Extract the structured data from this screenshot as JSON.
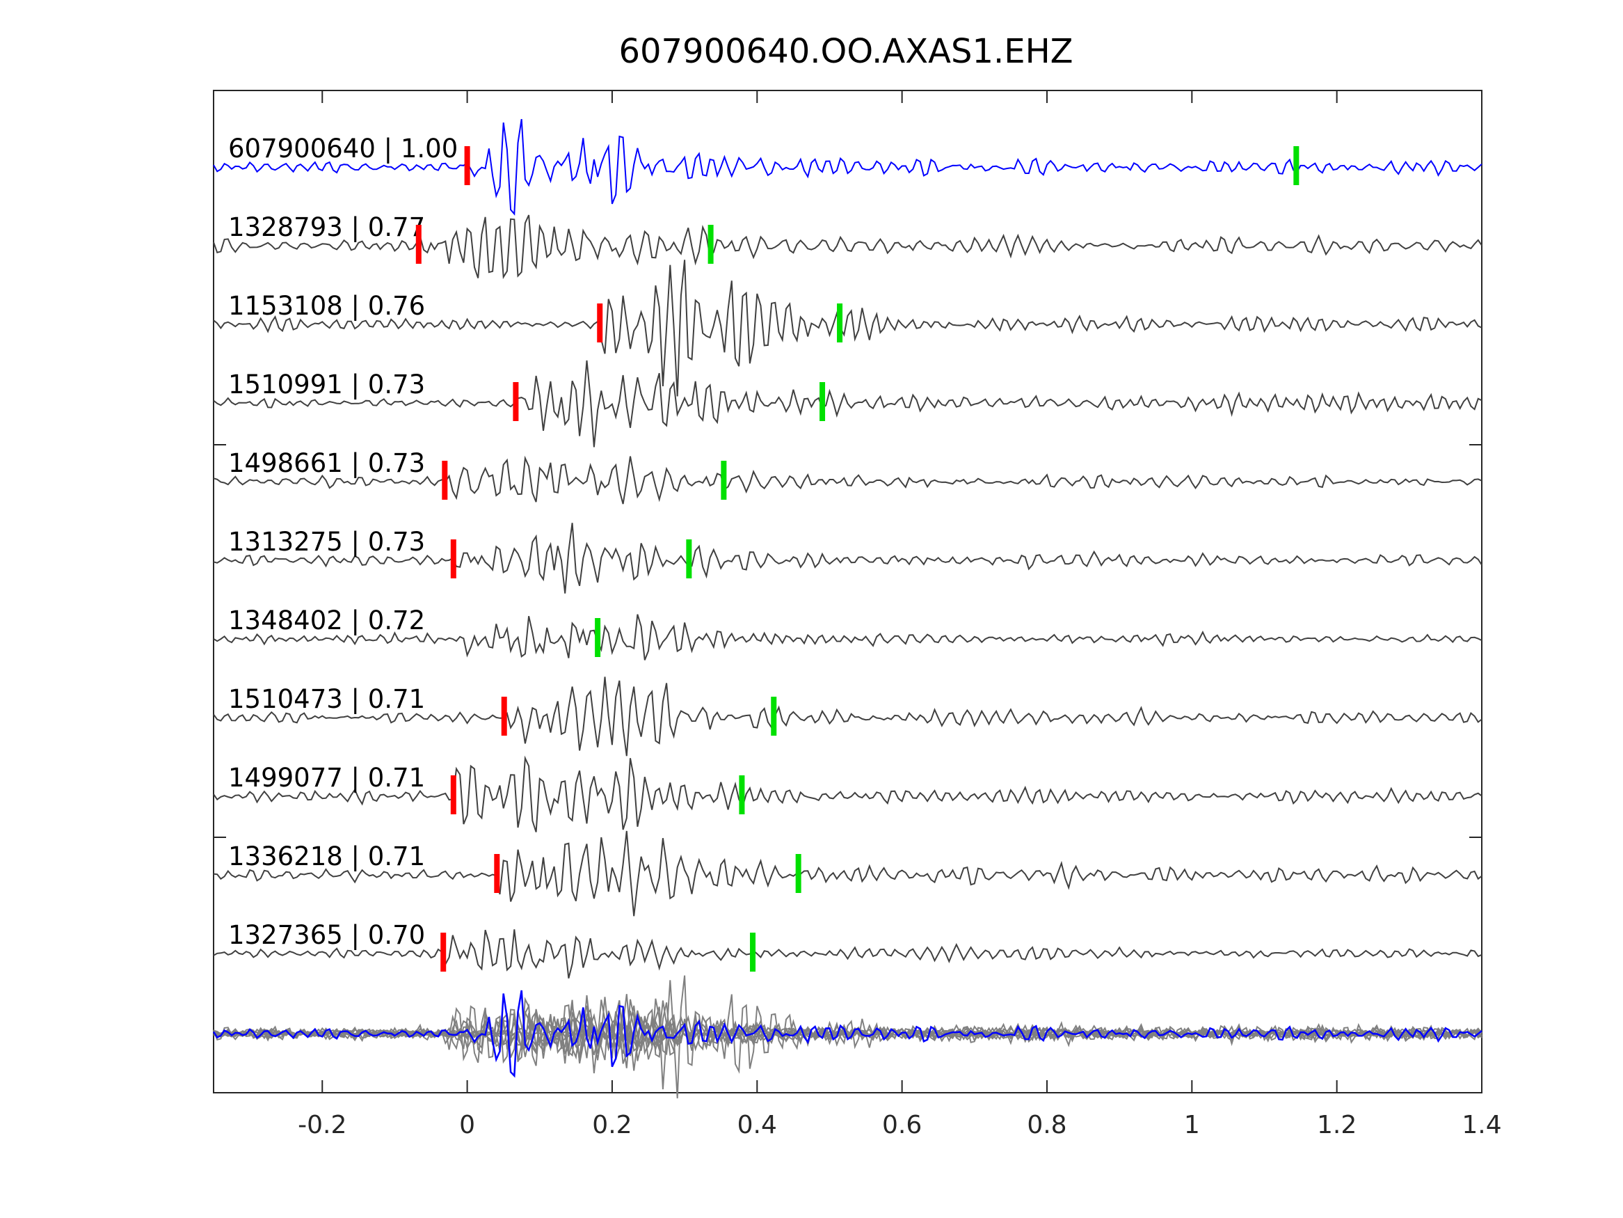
{
  "chart_data": {
    "type": "line",
    "title": "607900640.OO.AXAS1.EHZ",
    "xlabel": "",
    "ylabel": "",
    "xlim": [
      -0.35,
      1.4
    ],
    "xticks": [
      "-0.2",
      "0",
      "0.2",
      "0.4",
      "0.6",
      "0.8",
      "1",
      "1.2",
      "1.4"
    ],
    "xtick_values": [
      -0.2,
      0,
      0.2,
      0.4,
      0.6,
      0.8,
      1,
      1.2,
      1.4
    ],
    "grid": false,
    "colors": {
      "reference": "#0000ff",
      "trace": "#404040",
      "stack": "#808080",
      "p_pick": "#ff0000",
      "s_pick": "#00e000"
    },
    "series": [
      {
        "name": "607900640 | 1.00",
        "p_pick": 0.0,
        "s_pick": 1.144,
        "reference": true
      },
      {
        "name": "1328793 | 0.77",
        "p_pick": -0.067,
        "s_pick": 0.336
      },
      {
        "name": "1153108 | 0.76",
        "p_pick": 0.183,
        "s_pick": 0.514
      },
      {
        "name": "1510991 | 0.73",
        "p_pick": 0.067,
        "s_pick": 0.49
      },
      {
        "name": "1498661 | 0.73",
        "p_pick": -0.031,
        "s_pick": 0.354
      },
      {
        "name": "1313275 | 0.73",
        "p_pick": -0.019,
        "s_pick": 0.306
      },
      {
        "name": "1348402 | 0.72",
        "p_pick": null,
        "s_pick": 0.18
      },
      {
        "name": "1510473 | 0.71",
        "p_pick": 0.051,
        "s_pick": 0.423
      },
      {
        "name": "1499077 | 0.71",
        "p_pick": -0.019,
        "s_pick": 0.379
      },
      {
        "name": "1336218 | 0.71",
        "p_pick": 0.041,
        "s_pick": 0.457
      },
      {
        "name": "1327365 | 0.70",
        "p_pick": -0.033,
        "s_pick": 0.394
      }
    ]
  }
}
